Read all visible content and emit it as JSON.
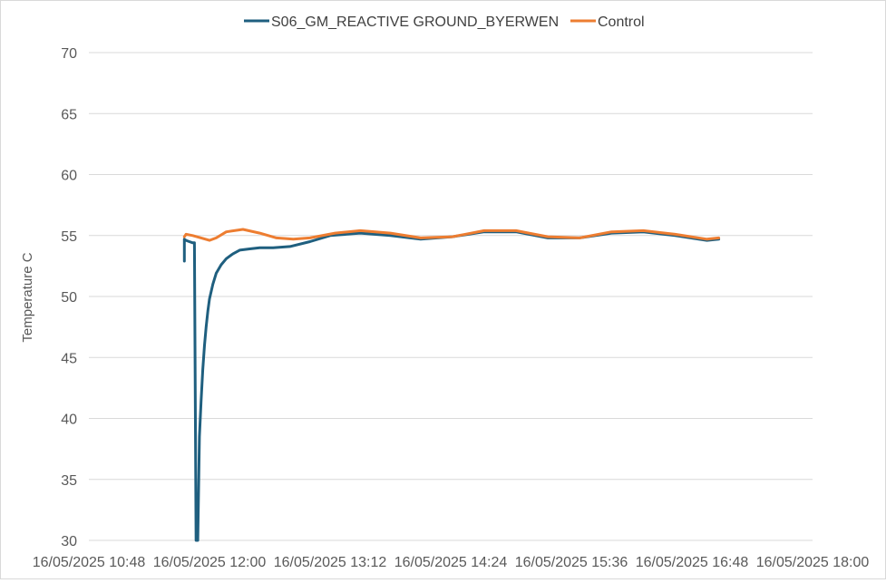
{
  "chart_data": {
    "type": "line",
    "title": "",
    "xlabel": "",
    "ylabel": "Temperature C",
    "ylim": [
      30,
      70
    ],
    "yticks": [
      30,
      35,
      40,
      45,
      50,
      55,
      60,
      65,
      70
    ],
    "xlim": [
      "16/05/2025 10:48",
      "16/05/2025 18:00"
    ],
    "xticks": [
      "16/05/2025 10:48",
      "16/05/2025 12:00",
      "16/05/2025 13:12",
      "16/05/2025 14:24",
      "16/05/2025 15:36",
      "16/05/2025 16:48",
      "16/05/2025 18:00"
    ],
    "grid": true,
    "legend": "top",
    "series": [
      {
        "name": "S06_GM_REACTIVE GROUND_BYERWEN",
        "color": "#1f5f7f",
        "x": [
          "16/05/2025 11:45",
          "16/05/2025 11:45",
          "16/05/2025 11:46",
          "16/05/2025 11:48",
          "16/05/2025 11:50",
          "16/05/2025 11:51",
          "16/05/2025 11:52",
          "16/05/2025 11:53",
          "16/05/2025 11:54",
          "16/05/2025 11:55",
          "16/05/2025 11:56",
          "16/05/2025 11:57",
          "16/05/2025 11:58",
          "16/05/2025 11:59",
          "16/05/2025 12:00",
          "16/05/2025 12:02",
          "16/05/2025 12:04",
          "16/05/2025 12:07",
          "16/05/2025 12:10",
          "16/05/2025 12:14",
          "16/05/2025 12:18",
          "16/05/2025 12:24",
          "16/05/2025 12:30",
          "16/05/2025 12:38",
          "16/05/2025 12:48",
          "16/05/2025 13:00",
          "16/05/2025 13:12",
          "16/05/2025 13:30",
          "16/05/2025 13:48",
          "16/05/2025 14:06",
          "16/05/2025 14:25",
          "16/05/2025 14:44",
          "16/05/2025 15:03",
          "16/05/2025 15:22",
          "16/05/2025 15:41",
          "16/05/2025 16:00",
          "16/05/2025 16:19",
          "16/05/2025 16:38",
          "16/05/2025 16:57",
          "16/05/2025 17:04"
        ],
        "y": [
          52.9,
          54.7,
          54.6,
          54.5,
          54.4,
          54.4,
          29.5,
          29.5,
          38.5,
          41.5,
          44.0,
          46.0,
          47.5,
          48.8,
          49.8,
          51.0,
          51.9,
          52.6,
          53.1,
          53.5,
          53.8,
          53.9,
          54.0,
          54.0,
          54.1,
          54.5,
          55.0,
          55.2,
          55.0,
          54.7,
          54.9,
          55.3,
          55.3,
          54.8,
          54.8,
          55.2,
          55.3,
          55.0,
          54.6,
          54.7
        ]
      },
      {
        "name": "Control",
        "color": "#ed7d31",
        "x": [
          "16/05/2025 11:45",
          "16/05/2025 11:46",
          "16/05/2025 11:50",
          "16/05/2025 11:55",
          "16/05/2025 12:00",
          "16/05/2025 12:04",
          "16/05/2025 12:10",
          "16/05/2025 12:20",
          "16/05/2025 12:30",
          "16/05/2025 12:40",
          "16/05/2025 12:50",
          "16/05/2025 13:00",
          "16/05/2025 13:15",
          "16/05/2025 13:30",
          "16/05/2025 13:48",
          "16/05/2025 14:06",
          "16/05/2025 14:25",
          "16/05/2025 14:44",
          "16/05/2025 15:03",
          "16/05/2025 15:22",
          "16/05/2025 15:41",
          "16/05/2025 16:00",
          "16/05/2025 16:19",
          "16/05/2025 16:38",
          "16/05/2025 16:57",
          "16/05/2025 17:04"
        ],
        "y": [
          54.9,
          55.1,
          55.0,
          54.8,
          54.6,
          54.8,
          55.3,
          55.5,
          55.2,
          54.8,
          54.7,
          54.8,
          55.2,
          55.4,
          55.2,
          54.8,
          54.9,
          55.4,
          55.4,
          54.9,
          54.8,
          55.3,
          55.4,
          55.1,
          54.7,
          54.8
        ]
      }
    ]
  }
}
